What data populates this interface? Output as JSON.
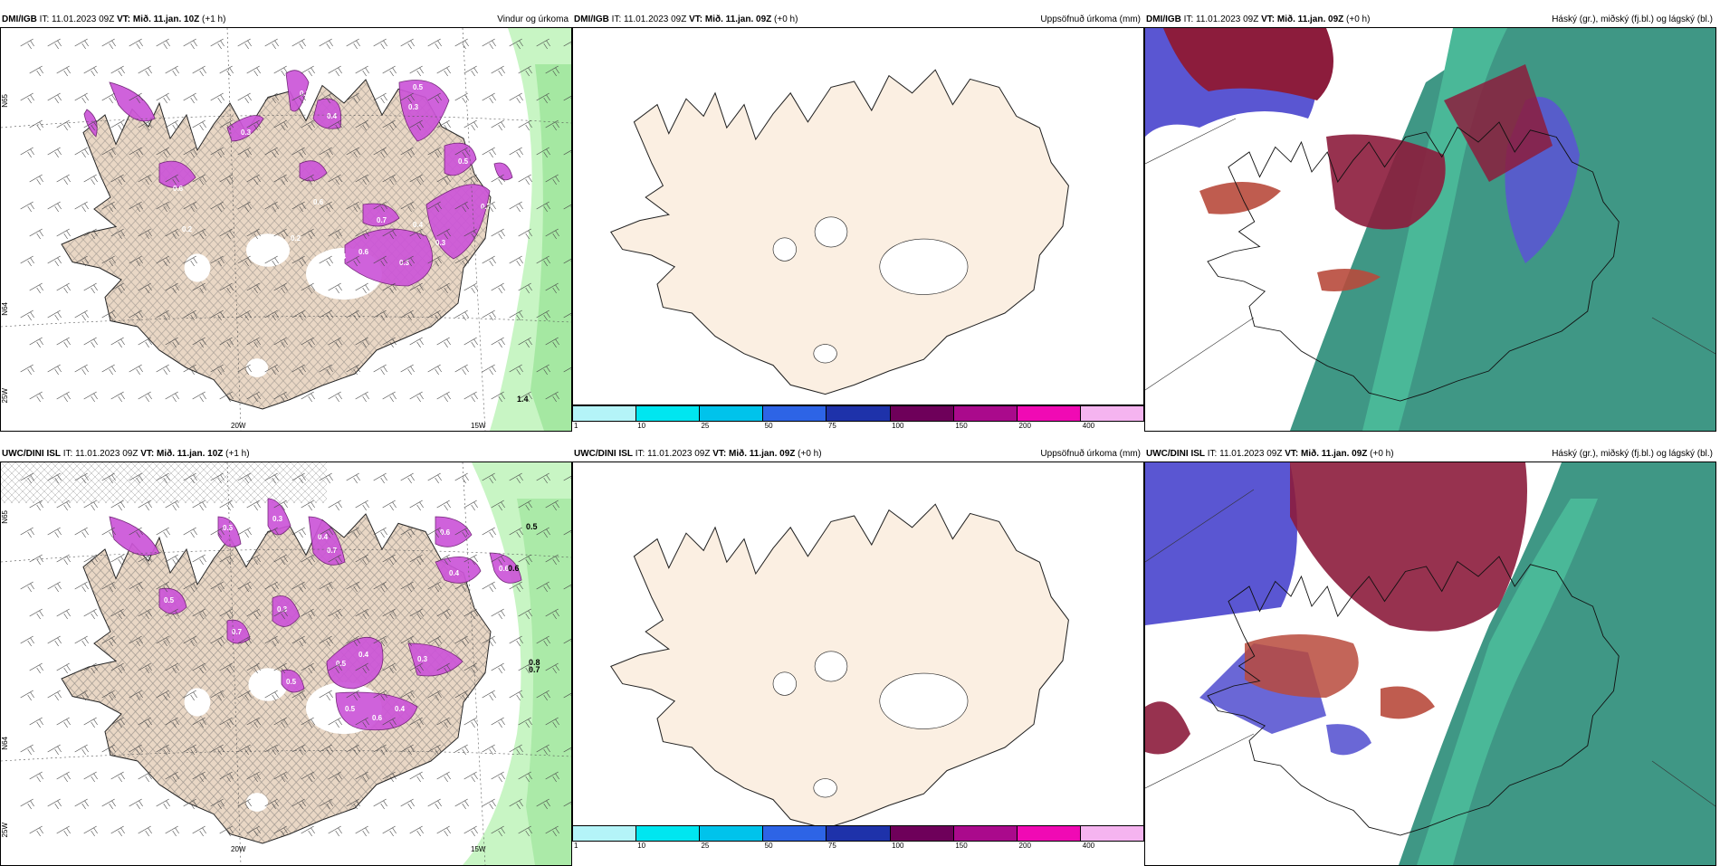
{
  "rows": [
    {
      "left": {
        "model": "DMI/IGB",
        "it_label": "IT:",
        "it_value": "11.01.2023 09Z",
        "vt_label": "VT:",
        "vt_value": "Mið. 11.jan. 10Z",
        "lead": "(+1 h)",
        "title": "Vindur og úrkoma",
        "lat_labels": [
          "N65",
          "N64",
          "25W"
        ],
        "lon_labels": [
          "20W",
          "15W"
        ],
        "precip_labels": [
          "0.6",
          "0.3",
          "0.3",
          "0.5",
          "0.4",
          "0.6",
          "0.2",
          "0.2",
          "0.3",
          "0.7",
          "0.4",
          "0.3",
          "0.5",
          "0.7",
          "0.6",
          "0.4",
          "0.3",
          "1.4"
        ]
      },
      "middle": {
        "model": "DMI/IGB",
        "it_label": "IT:",
        "it_value": "11.01.2023 09Z",
        "vt_label": "VT:",
        "vt_value": "Mið. 11.jan. 09Z",
        "lead": "(+0 h)",
        "title": "Uppsöfnuð úrkoma (mm)"
      },
      "right": {
        "model": "DMI/IGB",
        "it_label": "IT:",
        "it_value": "11.01.2023 09Z",
        "vt_label": "VT:",
        "vt_value": "Mið. 11.jan. 09Z",
        "lead": "(+0 h)",
        "title": "Háský (gr.), miðský (fj.bl.) og lágský (bl.)"
      }
    },
    {
      "left": {
        "model": "UWC/DINI ISL",
        "it_label": "IT:",
        "it_value": "11.01.2023 09Z",
        "vt_label": "VT:",
        "vt_value": "Mið. 11.jan. 10Z",
        "lead": "(+1 h)",
        "title": "",
        "lat_labels": [
          "N65",
          "N64",
          "25W"
        ],
        "lon_labels": [
          "20W",
          "15W"
        ],
        "precip_labels": [
          "0.5",
          "0.3",
          "0.4",
          "0.6",
          "0.4",
          "0.5",
          "0.3",
          "0.7",
          "0.5",
          "0.4",
          "0.3",
          "0.5",
          "0.6",
          "0.4",
          "0.5",
          "0.6",
          "0.7",
          "0.5",
          "0.6",
          "0.8",
          "0.7"
        ]
      },
      "middle": {
        "model": "UWC/DINI ISL",
        "it_label": "IT:",
        "it_value": "11.01.2023 09Z",
        "vt_label": "VT:",
        "vt_value": "Mið. 11.jan. 09Z",
        "lead": "(+0 h)",
        "title": "Uppsöfnuð úrkoma (mm)"
      },
      "right": {
        "model": "UWC/DINI ISL",
        "it_label": "IT:",
        "it_value": "11.01.2023 09Z",
        "vt_label": "VT:",
        "vt_value": "Mið. 11.jan. 09Z",
        "lead": "(+0 h)",
        "title": "Háský (gr.), miðský (fj.bl.) og lágský (bl.)"
      }
    }
  ],
  "colorbar": {
    "ticks": [
      "1",
      "10",
      "25",
      "50",
      "75",
      "100",
      "150",
      "200",
      "400"
    ],
    "colors": [
      "#b4f4f8",
      "#00e6f0",
      "#00c3eb",
      "#2d64e6",
      "#1e32aa",
      "#6e005a",
      "#aa0a8c",
      "#f00ab4",
      "#f5b4f0"
    ]
  },
  "colors": {
    "land": "#faeee0",
    "precip": "#cc55d8",
    "precip_light": "#b8f0b4",
    "cloud_high": "#2a8c78",
    "cloud_mid": "#5a56d2",
    "cloud_low": "#8c1c3c"
  }
}
